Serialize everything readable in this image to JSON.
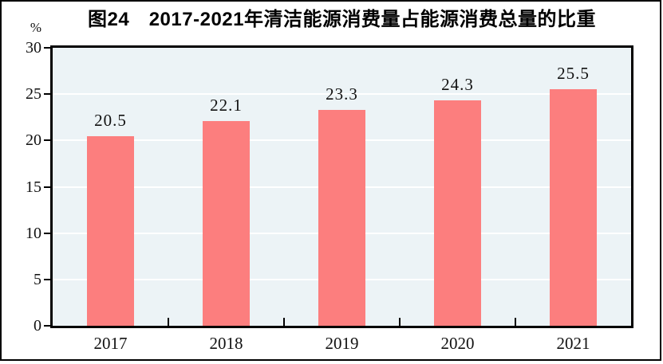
{
  "figure": {
    "title": "图24　2017-2021年清洁能源消费量占能源消费总量的比重",
    "unit_label": "%"
  },
  "chart_data": {
    "type": "bar",
    "title": "图24　2017-2021年清洁能源消费量占能源消费总量的比重",
    "categories": [
      "2017",
      "2018",
      "2019",
      "2020",
      "2021"
    ],
    "values": [
      20.5,
      22.1,
      23.3,
      24.3,
      25.5
    ],
    "data_labels": [
      "20.5",
      "22.1",
      "23.3",
      "24.3",
      "25.5"
    ],
    "xlabel": "",
    "ylabel": "%",
    "ylim": [
      0,
      30
    ],
    "yticks": [
      0,
      5,
      10,
      15,
      20,
      25,
      30
    ],
    "grid": true,
    "legend_position": "none",
    "colors": {
      "bar": "#FC7E7E",
      "plot_background": "#ECF3F6",
      "gridline": "#FFFFFF",
      "axis": "#000000",
      "text": "#111111"
    }
  }
}
